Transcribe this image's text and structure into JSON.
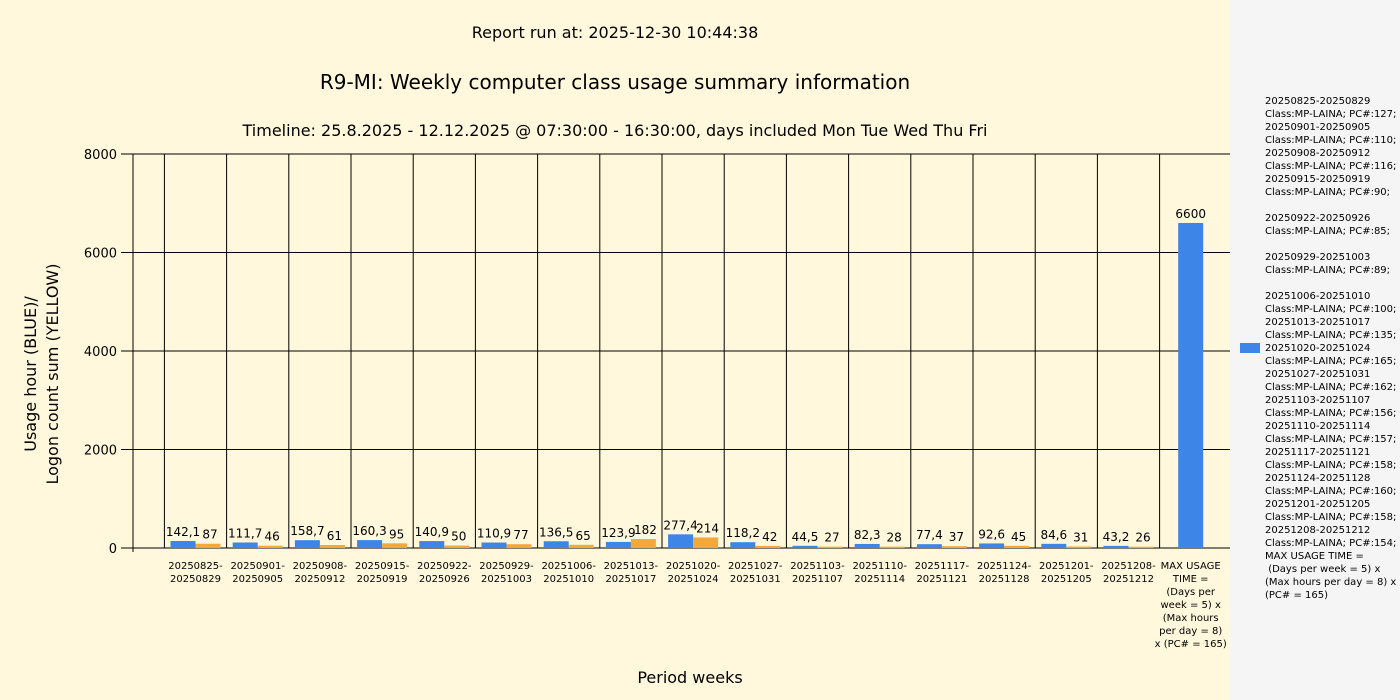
{
  "header": {
    "report_run": "Report run at: 2025-12-30 10:44:38",
    "timeline": "Timeline:  25.8.2025  - 12.12.2025  @  07:30:00 -  16:30:00, days included Mon Tue Wed Thu Fri"
  },
  "legend": {
    "text": "20250825-20250829\nClass:MP-LAINA; PC#:127;\n20250901-20250905\nClass:MP-LAINA; PC#:110;\n20250908-20250912\nClass:MP-LAINA; PC#:116;\n20250915-20250919\nClass:MP-LAINA; PC#:90;\n\n20250922-20250926\nClass:MP-LAINA; PC#:85;\n\n20250929-20251003\nClass:MP-LAINA; PC#:89;\n\n20251006-20251010\nClass:MP-LAINA; PC#:100;\n20251013-20251017\nClass:MP-LAINA; PC#:135;\n20251020-20251024\nClass:MP-LAINA; PC#:165;\n20251027-20251031\nClass:MP-LAINA; PC#:162;\n20251103-20251107\nClass:MP-LAINA; PC#:156;\n20251110-20251114\nClass:MP-LAINA; PC#:157;\n20251117-20251121\nClass:MP-LAINA; PC#:158;\n20251124-20251128\nClass:MP-LAINA; PC#:160;\n20251201-20251205\nClass:MP-LAINA; PC#:158;\n20251208-20251212\nClass:MP-LAINA; PC#:154;\nMAX USAGE TIME =\n (Days per week = 5) x (Max hours per day = 8) x (PC# = 165)"
  },
  "chart_data": {
    "type": "bar",
    "title": "R9-MI: Weekly computer class usage summary information",
    "xlabel": "Period weeks",
    "ylabel": [
      "Usage hour (BLUE)/",
      "Logon count sum (YELLOW)"
    ],
    "ylim": [
      0,
      8000
    ],
    "yticks": [
      0,
      2000,
      4000,
      6000,
      8000
    ],
    "grid": true,
    "legend_position": "right",
    "categories": [
      "20250825-\n20250829",
      "20250901-\n20250905",
      "20250908-\n20250912",
      "20250915-\n20250919",
      "20250922-\n20250926",
      "20250929-\n20251003",
      "20251006-\n20251010",
      "20251013-\n20251017",
      "20251020-\n20251024",
      "20251027-\n20251031",
      "20251103-\n20251107",
      "20251110-\n20251114",
      "20251117-\n20251121",
      "20251124-\n20251128",
      "20251201-\n20251205",
      "20251208-\n20251212",
      "MAX USAGE\nTIME =\n(Days per\nweek = 5) x\n(Max hours\nper day = 8)\nx (PC# = 165)"
    ],
    "series": [
      {
        "color": "#3d85e6",
        "values": [
          142.1,
          111.7,
          158.7,
          160.3,
          140.9,
          110.9,
          136.5,
          123.9,
          277.4,
          118.2,
          44.5,
          82.3,
          77.4,
          92.6,
          84.6,
          43.2,
          6600
        ],
        "labels": [
          "142,1",
          "111,7",
          "158,7",
          "160,3",
          "140,9",
          "110,9",
          "136,5",
          "123,9",
          "277,4",
          "118,2",
          "44,5",
          "82,3",
          "77,4",
          "92,6",
          "84,6",
          "43,2",
          "6600"
        ]
      },
      {
        "color": "#f5a83a",
        "values": [
          87,
          46,
          61,
          95,
          50,
          77,
          65,
          182,
          214,
          42,
          27,
          28,
          37,
          45,
          31,
          26,
          null
        ],
        "labels": [
          "87",
          "46",
          "61",
          "95",
          "50",
          "77",
          "65",
          "182",
          "214",
          "42",
          "27",
          "28",
          "37",
          "45",
          "31",
          "26",
          ""
        ]
      }
    ]
  }
}
